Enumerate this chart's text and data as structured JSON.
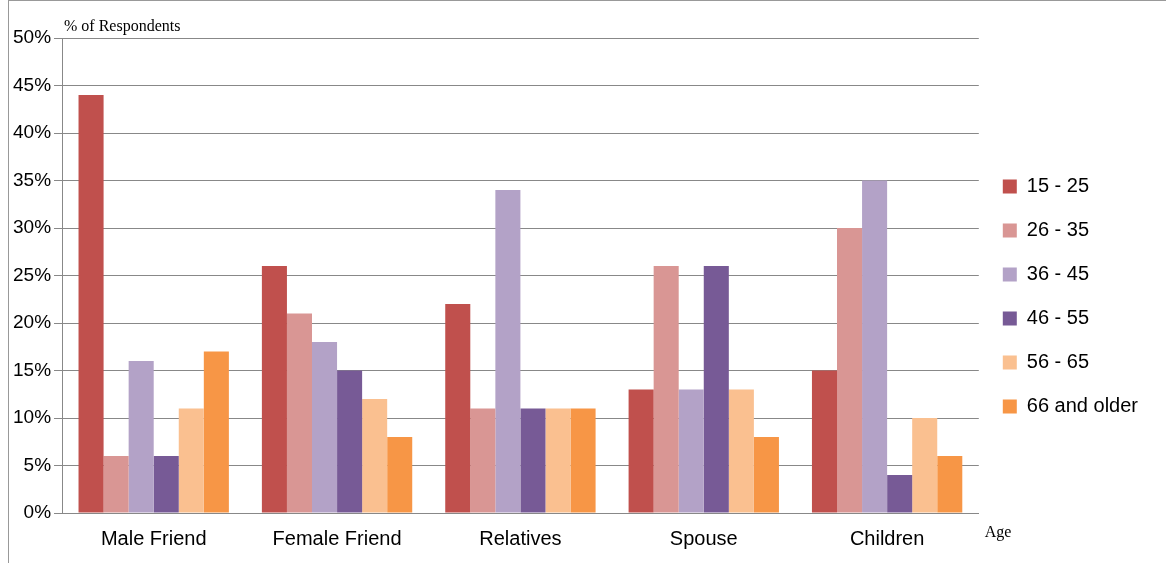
{
  "chart_data": {
    "type": "bar",
    "ylabel": "% of Respondents",
    "xlabel": "Age",
    "categories": [
      "Male Friend",
      "Female Friend",
      "Relatives",
      "Spouse",
      "Children"
    ],
    "series": [
      {
        "name": "15 - 25",
        "color": "#c0504d",
        "values": [
          44,
          26,
          22,
          13,
          15
        ]
      },
      {
        "name": "26 - 35",
        "color": "#d99694",
        "values": [
          6,
          21,
          11,
          26,
          30
        ]
      },
      {
        "name": "36 - 45",
        "color": "#b3a2c7",
        "values": [
          16,
          18,
          34,
          13,
          35
        ]
      },
      {
        "name": "46 - 55",
        "color": "#775a96",
        "values": [
          6,
          15,
          11,
          26,
          4
        ]
      },
      {
        "name": "56 - 65",
        "color": "#fac090",
        "values": [
          11,
          12,
          11,
          13,
          10
        ]
      },
      {
        "name": "66 and older",
        "color": "#f79646",
        "values": [
          17,
          8,
          11,
          8,
          6
        ]
      }
    ],
    "ylim": [
      0,
      50
    ],
    "yticks": [
      {
        "value": 0,
        "label": "0%"
      },
      {
        "value": 5,
        "label": "5%"
      },
      {
        "value": 10,
        "label": "10%"
      },
      {
        "value": 15,
        "label": "15%"
      },
      {
        "value": 20,
        "label": "20%"
      },
      {
        "value": 25,
        "label": "25%"
      },
      {
        "value": 30,
        "label": "30%"
      },
      {
        "value": 35,
        "label": "35%"
      },
      {
        "value": 40,
        "label": "40%"
      },
      {
        "value": 45,
        "label": "45%"
      },
      {
        "value": 50,
        "label": "50%"
      }
    ],
    "grid": "y",
    "legend": "right"
  }
}
